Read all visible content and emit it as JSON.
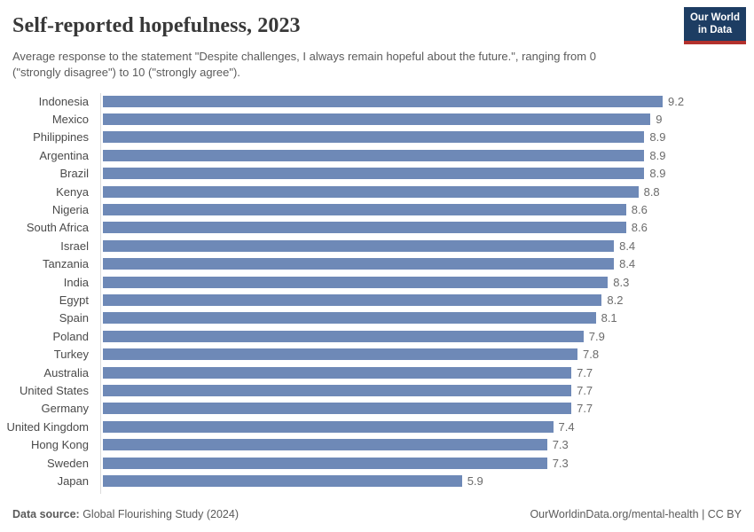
{
  "header": {
    "title": "Self-reported hopefulness, 2023",
    "subtitle": "Average response to the statement \"Despite challenges, I always remain hopeful about the future.\", ranging from 0 (\"strongly disagree\") to 10 (\"strongly agree\").",
    "logo": {
      "line1": "Our World",
      "line2": "in Data"
    }
  },
  "footer": {
    "datasource_label": "Data source:",
    "datasource_value": " Global Flourishing Study (2024)",
    "attribution": "OurWorldinData.org/mental-health | CC BY"
  },
  "colors": {
    "bar": "#6e89b7",
    "axis": "#dcdcdc",
    "logo_bg": "#1d3d63",
    "logo_accent": "#b3312d",
    "title_text": "#383838",
    "subtitle_text": "#5b5b5b"
  },
  "chart_data": {
    "type": "bar",
    "orientation": "horizontal",
    "title": "Self-reported hopefulness, 2023",
    "xlabel": "",
    "ylabel": "",
    "xlim": [
      0,
      9.2
    ],
    "grid": false,
    "legend": false,
    "categories": [
      "Indonesia",
      "Mexico",
      "Philippines",
      "Argentina",
      "Brazil",
      "Kenya",
      "Nigeria",
      "South Africa",
      "Israel",
      "Tanzania",
      "India",
      "Egypt",
      "Spain",
      "Poland",
      "Turkey",
      "Australia",
      "United States",
      "Germany",
      "United Kingdom",
      "Hong Kong",
      "Sweden",
      "Japan"
    ],
    "values": [
      9.2,
      9,
      8.9,
      8.9,
      8.9,
      8.8,
      8.6,
      8.6,
      8.4,
      8.4,
      8.3,
      8.2,
      8.1,
      7.9,
      7.8,
      7.7,
      7.7,
      7.7,
      7.4,
      7.3,
      7.3,
      5.9
    ],
    "value_labels": [
      "9.2",
      "9",
      "8.9",
      "8.9",
      "8.9",
      "8.8",
      "8.6",
      "8.6",
      "8.4",
      "8.4",
      "8.3",
      "8.2",
      "8.1",
      "7.9",
      "7.8",
      "7.7",
      "7.7",
      "7.7",
      "7.4",
      "7.3",
      "7.3",
      "5.9"
    ]
  }
}
